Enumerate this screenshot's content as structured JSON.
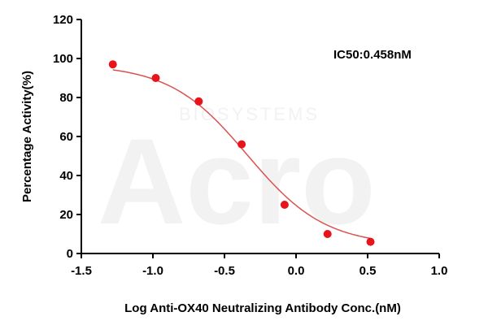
{
  "chart_data": {
    "type": "scatter",
    "title": "",
    "xlabel": "Log Anti-OX40 Neutralizing Antibody Conc.(nM)",
    "ylabel": "Percentage Activity(%)",
    "xlim": [
      -1.5,
      1.0
    ],
    "ylim": [
      0,
      120
    ],
    "xticks": [
      "-1.5",
      "-1.0",
      "-0.5",
      "0.0",
      "0.5",
      "1.0"
    ],
    "xtick_values": [
      -1.5,
      -1.0,
      -0.5,
      0.0,
      0.5,
      1.0
    ],
    "yticks": [
      "0",
      "20",
      "40",
      "60",
      "80",
      "100",
      "120"
    ],
    "ytick_values": [
      0,
      20,
      40,
      60,
      80,
      100,
      120
    ],
    "grid": false,
    "legend": "none",
    "series": [
      {
        "x": [
          -1.28,
          -0.98,
          -0.68,
          -0.38,
          -0.08,
          0.22,
          0.52
        ],
        "y": [
          97,
          90,
          78,
          56,
          25,
          10,
          6
        ],
        "color": "#e8141b"
      }
    ],
    "fit_curve": {
      "type": "4PL",
      "bottom": 4,
      "top": 97,
      "logEC50": -0.34,
      "hill": -1.6,
      "color": "#d9534f"
    },
    "annotation": "IC50:0.458nM",
    "watermark": {
      "logo": "Acro",
      "text": "BIOSYSTEMS"
    }
  }
}
